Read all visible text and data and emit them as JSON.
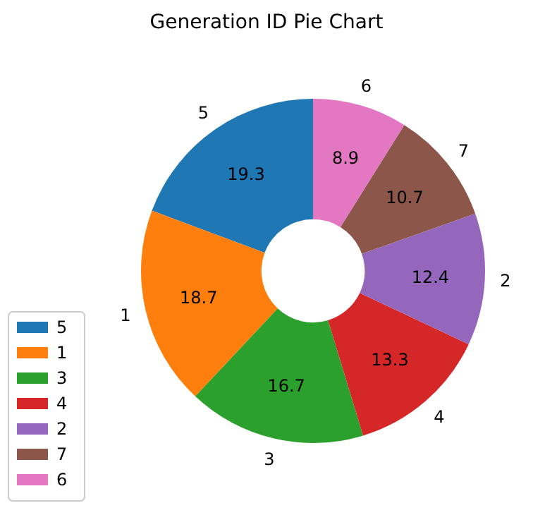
{
  "chart_data": {
    "type": "donut",
    "title": "Generation ID Pie Chart",
    "categories": [
      "5",
      "1",
      "3",
      "4",
      "2",
      "7",
      "6"
    ],
    "values": [
      19.3,
      18.7,
      16.7,
      13.3,
      12.4,
      10.7,
      8.9
    ],
    "colors": [
      "#1f77b4",
      "#ff7f0e",
      "#2ca02c",
      "#d62728",
      "#9467bd",
      "#8c564b",
      "#e377c2"
    ],
    "data_labels": true,
    "legend": "bottom left"
  }
}
